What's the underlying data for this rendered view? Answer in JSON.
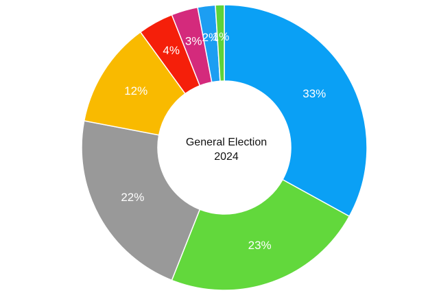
{
  "chart_data": {
    "type": "pie",
    "variant": "donut",
    "center_text": {
      "line1": "General Election",
      "line2": "2024"
    },
    "slices": [
      {
        "value": 33,
        "label": "33%",
        "color": "#0aa0f5"
      },
      {
        "value": 23,
        "label": "23%",
        "color": "#62d83c"
      },
      {
        "value": 22,
        "label": "22%",
        "color": "#999999"
      },
      {
        "value": 12,
        "label": "12%",
        "color": "#f9ba00"
      },
      {
        "value": 4,
        "label": "4%",
        "color": "#f51f0a"
      },
      {
        "value": 3,
        "label": "3%",
        "color": "#d42a7c"
      },
      {
        "value": 2,
        "label": "2%",
        "color": "#1c9ef2"
      },
      {
        "value": 1,
        "label": "1%",
        "color": "#5dd33a"
      }
    ],
    "legend": "none"
  }
}
